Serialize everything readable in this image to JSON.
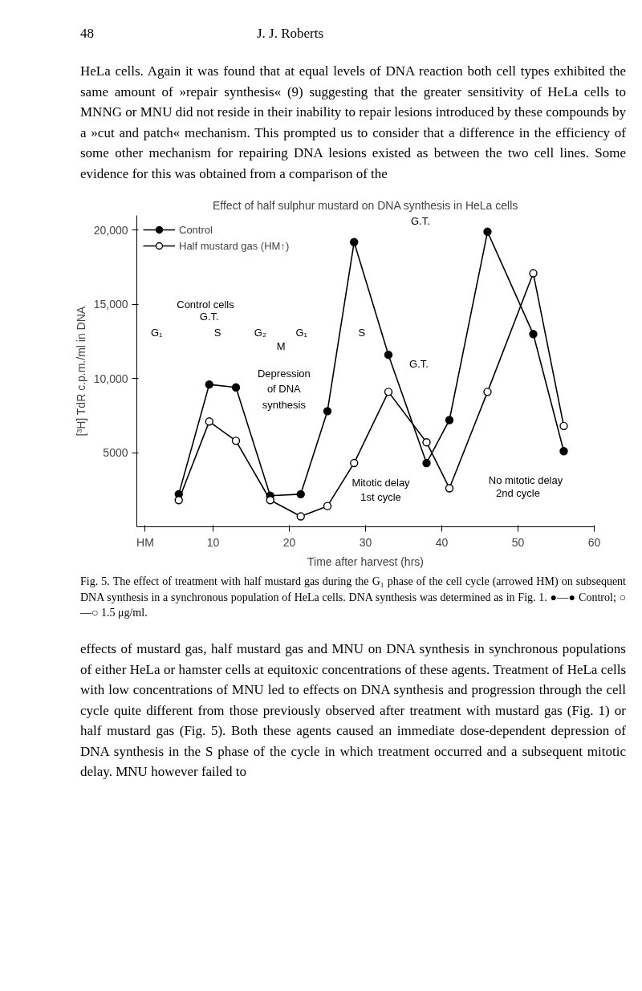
{
  "chart_data": {
    "type": "line",
    "title": "Effect of half sulphur mustard on DNA synthesis in HeLa cells",
    "xlabel": "Time after harvest (hrs)",
    "ylabel": "[³H] TdR c.p.m./ml in DNA",
    "x": [
      5.5,
      9.5,
      13,
      17.5,
      21.5,
      25,
      28.5,
      33,
      38,
      41,
      46,
      52,
      56
    ],
    "series": [
      {
        "name": "Control",
        "color": "#000000",
        "marker": "circle",
        "values": [
          2200,
          9600,
          9400,
          2100,
          2200,
          7800,
          19200,
          11600,
          4300,
          7200,
          19900,
          13000,
          5100
        ]
      },
      {
        "name": "Half mustard gas (HM↑)",
        "color": "#000000",
        "marker": "circle_open",
        "values": [
          1800,
          7100,
          5800,
          1800,
          700,
          1400,
          4300,
          9100,
          5700,
          2600,
          9100,
          17100,
          6800
        ]
      }
    ],
    "xlim": [
      0,
      60
    ],
    "ylim": [
      0,
      21000
    ],
    "xticks": [
      {
        "value": 1.1,
        "label": "HM"
      },
      10,
      20,
      30,
      40,
      50,
      60
    ],
    "yticks": [
      5000,
      {
        "value": 10000,
        "label": "10,000"
      },
      {
        "value": 15000,
        "label": "15,000"
      },
      {
        "value": 20000,
        "label": "20,000"
      }
    ],
    "grid": false,
    "legend": "top left",
    "line_style": "solid",
    "annotations": [
      "48",
      "J. J. Roberts",
      "HeLa cells. Again it was found that at equal levels of DNA reaction both cell types exhibited the same amount of »repair synthesis« (9) suggesting that the greater sensitivity of HeLa cells to MNNG or MNU did not reside in their inability to repair lesions introduced by these compounds by a »cut and patch« mechanism. This prompted us to consider that a difference in the efficiency of some other mechanism for repairing DNA lesions existed as between the two cell lines. Some evidence for this was obtained from a comparison of the",
      "Control cells",
      "G.T.",
      "G₁",
      "S",
      "G₂",
      "M",
      "G₁",
      "S",
      "G.T.",
      "G.T.",
      "Depression of DNA synthesis",
      "Mitotic delay",
      "1st cycle",
      "No mitotic delay",
      "2nd cycle",
      "Fig. 5. The effect of treatment with half mustard gas during the G₁ phase of the cell cycle (arrowed HM) on subsequent DNA synthesis in a synchronous population of HeLa cells. DNA synthesis was determined as in Fig. 1. ●—● Control; ○—○ 1.5 μg/ml.",
      "effects of mustard gas, half mustard gas and MNU on DNA synthesis in synchronous populations of either HeLa or hamster cells at equitoxic concentrations of these agents. Treatment of HeLa cells with low concentrations of MNU led to effects on DNA synthesis and progression through the cell cycle quite different from those previously observed after treatment with mustard gas (Fig. 1) or half mustard gas (Fig. 5). Both these agents caused an immediate dose-dependent depression of DNA synthesis in the S phase of the cycle in which treatment occurred and a subsequent mitotic delay. MNU however failed to"
    ]
  }
}
